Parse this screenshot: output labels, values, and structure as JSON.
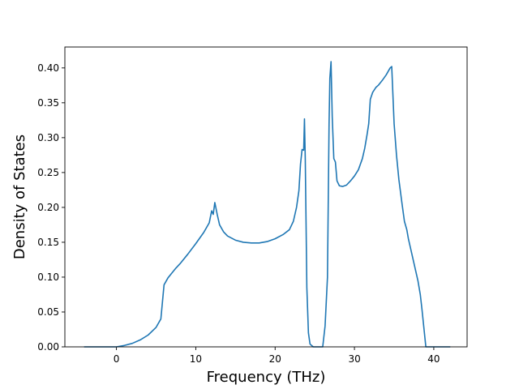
{
  "chart_data": {
    "type": "line",
    "xlabel": "Frequency (THz)",
    "ylabel": "Density of States",
    "xlim": [
      -6.5,
      44.2
    ],
    "ylim": [
      0.0,
      0.43
    ],
    "grid": false,
    "x_ticks": [
      0,
      10,
      20,
      30,
      40
    ],
    "y_ticks": [
      0.0,
      0.05,
      0.1,
      0.15,
      0.2,
      0.25,
      0.3,
      0.35,
      0.4
    ],
    "x_tick_labels": [
      "0",
      "10",
      "20",
      "30",
      "40"
    ],
    "y_tick_labels": [
      "0.00",
      "0.05",
      "0.10",
      "0.15",
      "0.20",
      "0.25",
      "0.30",
      "0.35",
      "0.40"
    ],
    "series": [
      {
        "color": "#1f77b4",
        "x": [
          -4.0,
          -2.0,
          0.0,
          1.0,
          2.0,
          3.0,
          4.0,
          5.0,
          5.6,
          6.0,
          6.5,
          7.0,
          7.5,
          8.0,
          9.0,
          10.0,
          11.0,
          11.7,
          12.0,
          12.2,
          12.4,
          12.7,
          13.0,
          13.5,
          14.0,
          15.0,
          16.0,
          17.0,
          18.0,
          19.0,
          20.0,
          21.0,
          21.8,
          22.3,
          22.7,
          23.0,
          23.2,
          23.4,
          23.6,
          23.7,
          23.8,
          23.9,
          24.0,
          24.2,
          24.4,
          24.8,
          25.5,
          26.0,
          26.3,
          26.6,
          26.8,
          26.9,
          27.05,
          27.2,
          27.4,
          27.6,
          27.8,
          28.1,
          28.5,
          29.0,
          29.5,
          30.0,
          30.5,
          31.0,
          31.3,
          31.6,
          31.8,
          32.0,
          32.3,
          32.7,
          33.0,
          33.5,
          34.0,
          34.5,
          34.7,
          35.0,
          35.3,
          35.6,
          36.0,
          36.3,
          36.6,
          36.8,
          37.2,
          37.6,
          38.0,
          38.3,
          38.5,
          39.0,
          40.0,
          41.0,
          42.0
        ],
        "y": [
          0.0,
          0.0,
          0.0,
          0.002,
          0.005,
          0.01,
          0.017,
          0.028,
          0.04,
          0.089,
          0.099,
          0.106,
          0.113,
          0.119,
          0.133,
          0.148,
          0.164,
          0.178,
          0.195,
          0.19,
          0.207,
          0.19,
          0.175,
          0.165,
          0.159,
          0.153,
          0.15,
          0.149,
          0.149,
          0.151,
          0.155,
          0.161,
          0.168,
          0.18,
          0.2,
          0.224,
          0.262,
          0.283,
          0.282,
          0.327,
          0.27,
          0.18,
          0.085,
          0.02,
          0.004,
          0.0,
          0.0,
          0.0,
          0.03,
          0.1,
          0.32,
          0.385,
          0.409,
          0.33,
          0.27,
          0.265,
          0.238,
          0.231,
          0.23,
          0.232,
          0.238,
          0.245,
          0.254,
          0.27,
          0.285,
          0.305,
          0.32,
          0.355,
          0.365,
          0.372,
          0.375,
          0.382,
          0.39,
          0.4,
          0.402,
          0.32,
          0.275,
          0.24,
          0.205,
          0.18,
          0.168,
          0.155,
          0.135,
          0.115,
          0.095,
          0.075,
          0.055,
          0.0,
          0.0,
          0.0,
          0.0
        ]
      }
    ]
  }
}
